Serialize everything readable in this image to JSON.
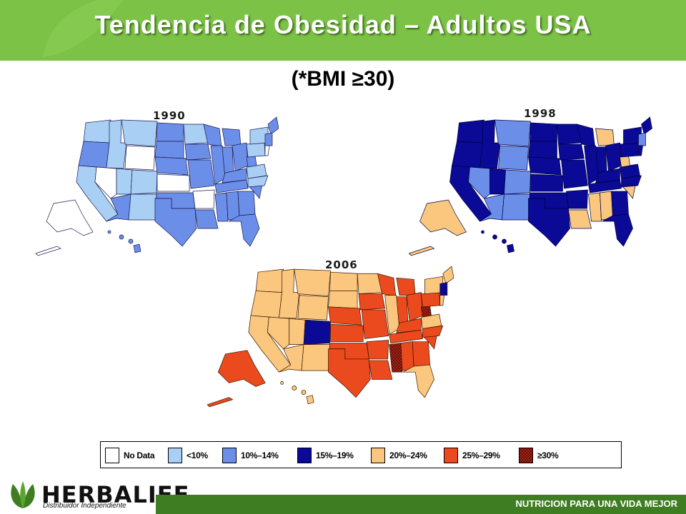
{
  "title": "Tendencia de Obesidad – Adultos USA",
  "subtitle": "(*BMI ≥30)",
  "maps": [
    {
      "year": "1990"
    },
    {
      "year": "1998"
    },
    {
      "year": "2006"
    }
  ],
  "legend": [
    {
      "label": "No Data",
      "color": "#ffffff",
      "pattern": false
    },
    {
      "label": "<10%",
      "color": "#a9cff5",
      "pattern": false
    },
    {
      "label": "10%–14%",
      "color": "#6b8fe8",
      "pattern": false
    },
    {
      "label": "15%–19%",
      "color": "#0a0a96",
      "pattern": false
    },
    {
      "label": "20%–24%",
      "color": "#fbc77f",
      "pattern": false
    },
    {
      "label": "25%–29%",
      "color": "#ea4a1e",
      "pattern": false
    },
    {
      "label": "≥30%",
      "color": "#a02018",
      "pattern": true
    }
  ],
  "brand": {
    "logo_text": "HERBALIFE",
    "logo_subtext": "Distribuidor Independiente",
    "tagline": "NUTRICION PARA UNA VIDA MEJOR",
    "green": "#7cc246",
    "dark_green": "#3f7d22"
  }
}
